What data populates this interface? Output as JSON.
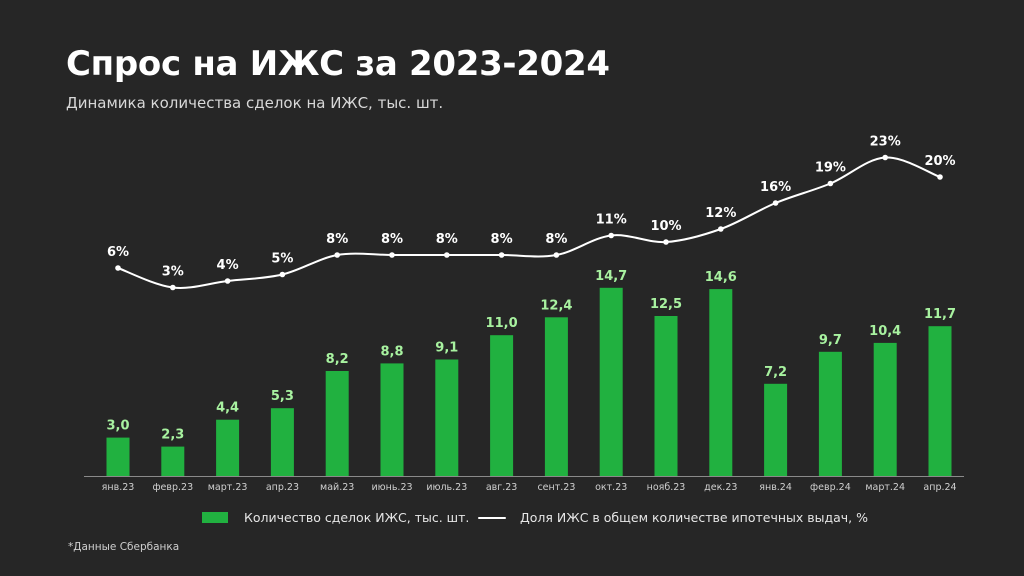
{
  "header": {
    "title": "Спрос на ИЖС за 2023-2024",
    "subtitle": "Динамика количества сделок на ИЖС, тыс. шт."
  },
  "legend": {
    "bars_label": "Количество сделок ИЖС, тыс. шт.",
    "line_label": "Доля ИЖС в общем количестве ипотечных выдач, %"
  },
  "footnote": "*Данные Сбербанка",
  "colors": {
    "background": "#262626",
    "bar": "#21b140",
    "bar_label": "#a8f2a0",
    "line": "#ffffff",
    "axis": "#8a8a8a"
  },
  "chart_data": {
    "type": "bar",
    "categories": [
      "янв.23",
      "февр.23",
      "март.23",
      "апр.23",
      "май.23",
      "июнь.23",
      "июль.23",
      "авг.23",
      "сент.23",
      "окт.23",
      "нояб.23",
      "дек.23",
      "янв.24",
      "февр.24",
      "март.24",
      "апр.24"
    ],
    "series": [
      {
        "name": "Количество сделок ИЖС, тыс. шт.",
        "kind": "bar",
        "values": [
          3.0,
          2.3,
          4.4,
          5.3,
          8.2,
          8.8,
          9.1,
          11.0,
          12.4,
          14.7,
          12.5,
          14.6,
          7.2,
          9.7,
          10.4,
          11.7
        ],
        "labels": [
          "3,0",
          "2,3",
          "4,4",
          "5,3",
          "8,2",
          "8,8",
          "9,1",
          "11,0",
          "12,4",
          "14,7",
          "12,5",
          "14,6",
          "7,2",
          "9,7",
          "10,4",
          "11,7"
        ]
      },
      {
        "name": "Доля ИЖС в общем количестве ипотечных выдач, %",
        "kind": "line",
        "values": [
          6,
          3,
          4,
          5,
          8,
          8,
          8,
          8,
          8,
          11,
          10,
          12,
          16,
          19,
          23,
          20
        ],
        "labels": [
          "6%",
          "3%",
          "4%",
          "5%",
          "8%",
          "8%",
          "8%",
          "8%",
          "8%",
          "11%",
          "10%",
          "12%",
          "16%",
          "19%",
          "23%",
          "20%"
        ]
      }
    ],
    "grid": false,
    "legend_position": "bottom"
  }
}
